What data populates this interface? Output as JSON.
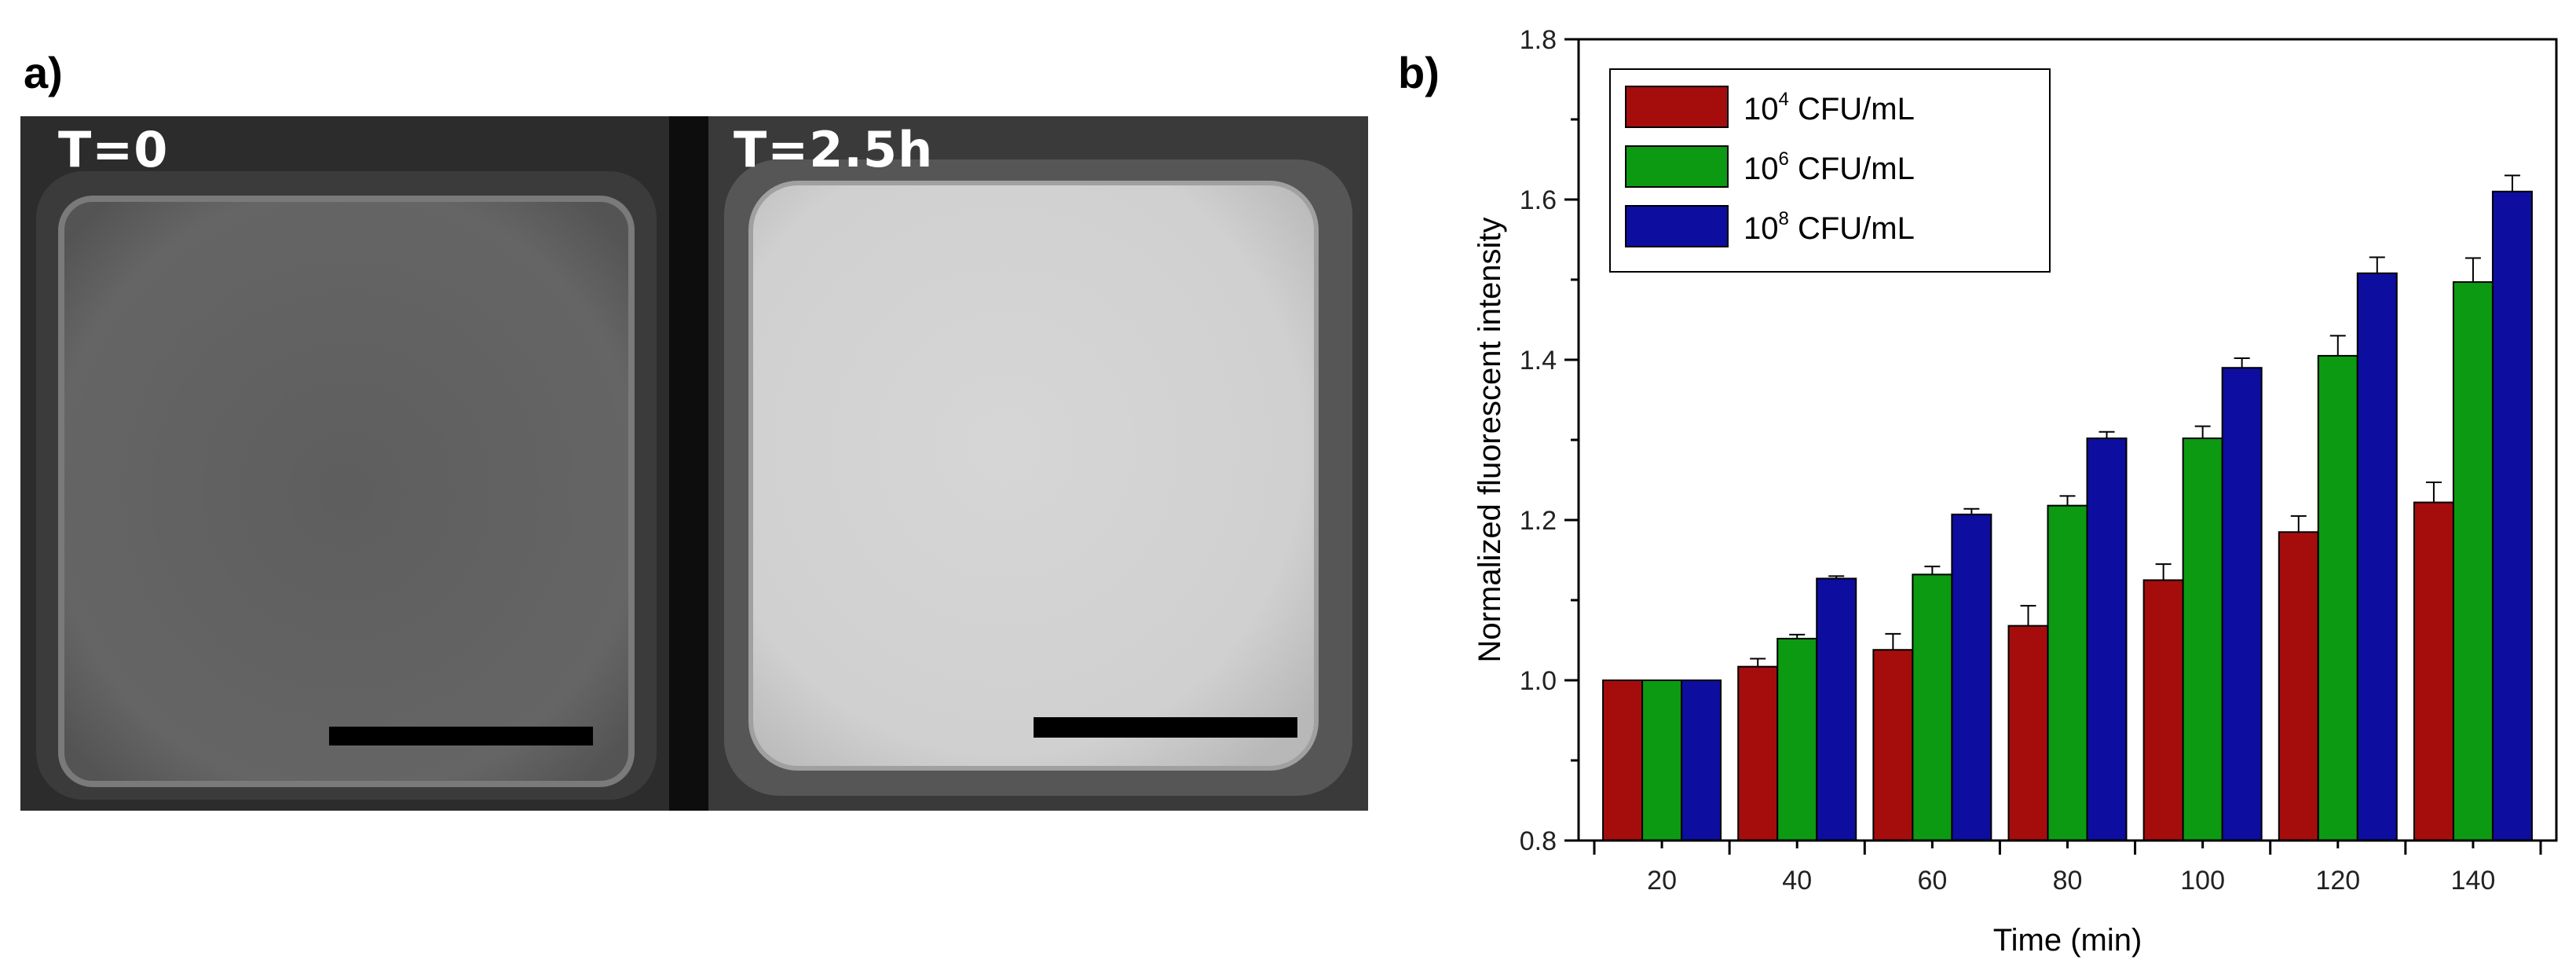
{
  "panel_a": {
    "label": "a)",
    "images": [
      {
        "time_label": "T=0",
        "brightness": "dim"
      },
      {
        "time_label": "T=2.5h",
        "brightness": "bright"
      }
    ]
  },
  "panel_b": {
    "label": "b)"
  },
  "colors": {
    "series_1": "#a50d0d",
    "series_2": "#0c9a12",
    "series_3": "#0d0d9f"
  },
  "chart_data": {
    "type": "bar",
    "categories": [
      "20",
      "40",
      "60",
      "80",
      "100",
      "120",
      "140"
    ],
    "series": [
      {
        "name_base": "10",
        "name_exp": "4",
        "name_unit": " CFU/mL",
        "values": [
          1.0,
          1.017,
          1.038,
          1.068,
          1.125,
          1.185,
          1.222
        ],
        "errors": [
          0.0,
          0.01,
          0.02,
          0.025,
          0.02,
          0.02,
          0.025
        ]
      },
      {
        "name_base": "10",
        "name_exp": "6",
        "name_unit": " CFU/mL",
        "values": [
          1.0,
          1.052,
          1.132,
          1.218,
          1.302,
          1.405,
          1.497
        ],
        "errors": [
          0.0,
          0.005,
          0.01,
          0.012,
          0.015,
          0.025,
          0.03
        ]
      },
      {
        "name_base": "10",
        "name_exp": "8",
        "name_unit": " CFU/mL",
        "values": [
          1.0,
          1.127,
          1.207,
          1.302,
          1.39,
          1.508,
          1.61
        ],
        "errors": [
          0.0,
          0.003,
          0.007,
          0.008,
          0.012,
          0.02,
          0.02
        ]
      }
    ],
    "xlabel": "Time (min)",
    "ylabel": "Normalized fluorescent intensity",
    "ylim": [
      0.8,
      1.8
    ],
    "yticks": [
      "0.8",
      "1.0",
      "1.2",
      "1.4",
      "1.6",
      "1.8"
    ],
    "grid": false,
    "legend_position": "top-left",
    "error_bars": true
  }
}
